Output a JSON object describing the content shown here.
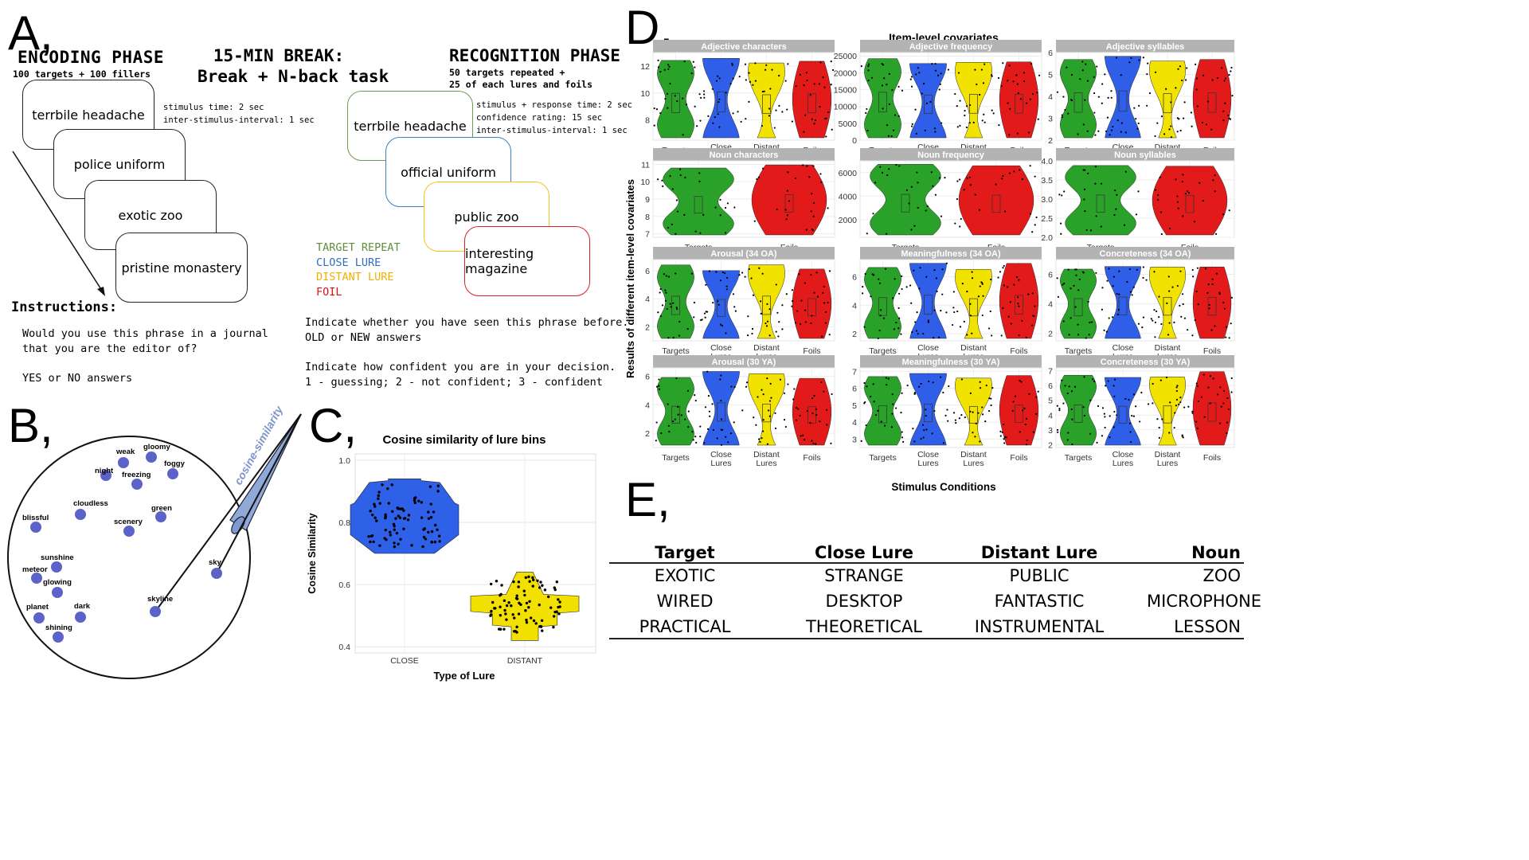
{
  "panel_letters": {
    "a": "A,",
    "b": "B,",
    "c": "C,",
    "d": "D,",
    "e": "E,"
  },
  "panel_a": {
    "encoding": {
      "title": "ENCODING PHASE",
      "subtitle": "100 targets + 100 fillers",
      "timing": "stimulus time: 2 sec\ninter-stimulus-interval: 1 sec",
      "cards": [
        "terrbile headache",
        "police uniform",
        "exotic zoo",
        "pristine monastery"
      ]
    },
    "break": {
      "title_line1": "15-MIN BREAK:",
      "title_line2": "Break + N-back task"
    },
    "recognition": {
      "title": "RECOGNITION PHASE",
      "subtitle_line1": "50 targets repeated +",
      "subtitle_line2": "25 of each lures and foils",
      "timing": "stimulus + response time: 2 sec\nconfidence rating: 15 sec\ninter-stimulus-interval: 1 sec",
      "cards": [
        "terrbile headache",
        "official uniform",
        "public zoo",
        "interesting magazine"
      ],
      "card_colors": [
        "#6f9a4a",
        "#3f7fc7",
        "#f0c419",
        "#e02020"
      ],
      "legend": [
        {
          "label": "TARGET REPEAT",
          "color": "#5f8f3a"
        },
        {
          "label": "CLOSE LURE",
          "color": "#2f6fc0"
        },
        {
          "label": "DISTANT LURE",
          "color": "#f0b000"
        },
        {
          "label": "FOIL",
          "color": "#e01010"
        }
      ],
      "instr1_line1": "Indicate whether you have seen this phrase before.",
      "instr1_line2": "OLD or NEW answers",
      "instr2_line1": "Indicate how confident you are in your decision.",
      "instr2_line2": "1 - guessing; 2 - not confident; 3 - confident"
    },
    "instructions": {
      "title": "Instructions:",
      "line1": "Would you use this phrase in a journal",
      "line2": "that you are the editor of?",
      "line3": "YES or NO answers"
    }
  },
  "panel_b": {
    "label": "cosine-similarity",
    "point_color": "#5b63c8",
    "words": [
      "weak",
      "gloomy",
      "night",
      "foggy",
      "freezing",
      "cloudless",
      "green",
      "blissful",
      "scenery",
      "sunshine",
      "meteor",
      "glowing",
      "sky",
      "skyline",
      "planet",
      "dark",
      "shining"
    ]
  },
  "panel_c": {
    "chart_data": {
      "type": "violin",
      "title": "Cosine similarity of lure bins",
      "xlabel": "Type of Lure",
      "ylabel": "Cosine Similarity",
      "categories": [
        "CLOSE",
        "DISTANT"
      ],
      "ylim": [
        0.38,
        1.02
      ],
      "yticks": [
        "0.4",
        "0.6",
        "0.8",
        "1.0"
      ],
      "series": [
        {
          "name": "CLOSE",
          "color": "#2f60e8",
          "min": 0.7,
          "max": 0.94,
          "median": 0.79
        },
        {
          "name": "DISTANT",
          "color": "#f2e000",
          "min": 0.42,
          "max": 0.64,
          "median": 0.57
        }
      ]
    }
  },
  "panel_d": {
    "chart_data": {
      "type": "violin",
      "title": "Item-level covariates",
      "xlabel": "Stimulus Conditions",
      "ylabel": "Results of different item-level covariates",
      "colors": {
        "Targets": "#2aa22a",
        "Close Lures": "#2f5fe8",
        "Distant Lures": "#f2e200",
        "Foils": "#e21a1a"
      },
      "facets": [
        {
          "title": "Adjective characters",
          "categories": [
            "Targets",
            "Close Lures",
            "Distant Lures",
            "Foils"
          ],
          "yticks": [
            "8",
            "10",
            "12"
          ],
          "ylim": [
            6.5,
            13
          ]
        },
        {
          "title": "Adjective frequency",
          "categories": [
            "Targets",
            "Close Lures",
            "Distant Lures",
            "Foils"
          ],
          "yticks": [
            "0",
            "5000",
            "10000",
            "15000",
            "20000",
            "25000"
          ],
          "ylim": [
            0,
            26000
          ]
        },
        {
          "title": "Adjective syllables",
          "categories": [
            "Targets",
            "Close Lures",
            "Distant Lures",
            "Foils"
          ],
          "yticks": [
            "2",
            "3",
            "4",
            "5",
            "6"
          ],
          "ylim": [
            2,
            6
          ]
        },
        {
          "title": "Noun characters",
          "categories": [
            "Targets",
            "Foils"
          ],
          "yticks": [
            "7",
            "8",
            "9",
            "10",
            "11"
          ],
          "ylim": [
            6.8,
            11.2
          ]
        },
        {
          "title": "Noun frequency",
          "categories": [
            "Targets",
            "Foils"
          ],
          "yticks": [
            "2000",
            "4000",
            "6000"
          ],
          "ylim": [
            500,
            7000
          ]
        },
        {
          "title": "Noun syllables",
          "categories": [
            "Targets",
            "Foils"
          ],
          "yticks": [
            "2.0",
            "2.5",
            "3.0",
            "3.5",
            "4.0"
          ],
          "ylim": [
            2,
            4
          ]
        },
        {
          "title": "Arousal (34 OA)",
          "categories": [
            "Targets",
            "Close Lures",
            "Distant Lures",
            "Foils"
          ],
          "yticks": [
            "2",
            "4",
            "6"
          ],
          "ylim": [
            1,
            6.8
          ]
        },
        {
          "title": "Meaningfulness (34 OA)",
          "categories": [
            "Targets",
            "Close Lures",
            "Distant Lures",
            "Foils"
          ],
          "yticks": [
            "2",
            "4",
            "6"
          ],
          "ylim": [
            1.5,
            7.2
          ]
        },
        {
          "title": "Concreteness (34 OA)",
          "categories": [
            "Targets",
            "Close Lures",
            "Distant Lures",
            "Foils"
          ],
          "yticks": [
            "2",
            "4",
            "6"
          ],
          "ylim": [
            1.5,
            7
          ]
        },
        {
          "title": "Arousal (30 YA)",
          "categories": [
            "Targets",
            "Close Lures",
            "Distant Lures",
            "Foils"
          ],
          "yticks": [
            "2",
            "4",
            "6"
          ],
          "ylim": [
            1,
            6.6
          ]
        },
        {
          "title": "Meaningfulness (30 YA)",
          "categories": [
            "Targets",
            "Close Lures",
            "Distant Lures",
            "Foils"
          ],
          "yticks": [
            "3",
            "4",
            "5",
            "6",
            "7"
          ],
          "ylim": [
            2.5,
            7.2
          ]
        },
        {
          "title": "Concreteness (30 YA)",
          "categories": [
            "Targets",
            "Close Lures",
            "Distant Lures",
            "Foils"
          ],
          "yticks": [
            "2",
            "3",
            "4",
            "5",
            "6",
            "7"
          ],
          "ylim": [
            1.8,
            7.2
          ]
        }
      ]
    }
  },
  "panel_e": {
    "headers": [
      "Target",
      "Close Lure",
      "Distant Lure",
      "Noun"
    ],
    "rows": [
      [
        "EXOTIC",
        "STRANGE",
        "PUBLIC",
        "ZOO"
      ],
      [
        "WIRED",
        "DESKTOP",
        "FANTASTIC",
        "MICROPHONE"
      ],
      [
        "PRACTICAL",
        "THEORETICAL",
        "INSTRUMENTAL",
        "LESSON"
      ]
    ]
  }
}
